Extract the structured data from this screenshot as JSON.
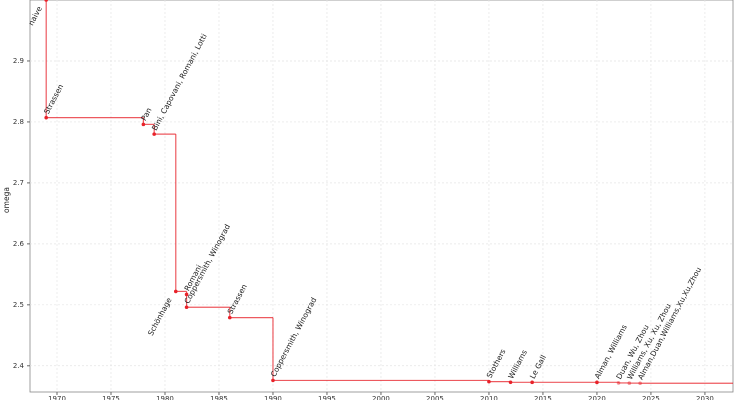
{
  "chart_data": {
    "type": "step",
    "ylabel": "omega",
    "xlim": [
      1967.5,
      2032.6
    ],
    "ylim": [
      2.357,
      3.0
    ],
    "xticks": [
      1970,
      1975,
      1980,
      1985,
      1990,
      1995,
      2000,
      2005,
      2010,
      2015,
      2020,
      2025,
      2030
    ],
    "yticks": [
      2.4,
      2.5,
      2.6,
      2.7,
      2.8,
      2.9
    ],
    "grid": true,
    "series": [
      {
        "color": "#e8222a",
        "x": [
          1969,
          1969,
          1978,
          1979,
          1981,
          1982,
          1982,
          1986,
          1990,
          2010,
          2012,
          2014,
          2020,
          2022,
          2023,
          2024
        ],
        "values": [
          3.0,
          2.807,
          2.796,
          2.78,
          2.522,
          2.517,
          2.496,
          2.479,
          2.376,
          2.374,
          2.3729,
          2.3728639,
          2.3728596,
          2.371866,
          2.371552,
          2.371339
        ],
        "labels": [
          "naive",
          "Strassen",
          "Pan",
          "Bini, Capovani, Romani, Lotti",
          "Schönhage",
          "Romani",
          "Coppersmith, Winograd",
          "Strassen",
          "Coppersmith, Winograd",
          "Stothers",
          "Williams",
          "Le Gall",
          "Alman, Williams",
          "Duan, Wu, Zhou",
          "Williams, Xu, Xu, Zhou",
          "Alman,Duan,Williams,Xu,Xu,Zhou"
        ],
        "label_colors": [
          "#222",
          "#222",
          "#222",
          "#222",
          "#222",
          "#222",
          "#222",
          "#222",
          "#222",
          "#222",
          "#222",
          "#222",
          "#222",
          "#999",
          "#999",
          "#999"
        ],
        "label_side": [
          "left",
          "right",
          "right",
          "right",
          "left",
          "right",
          "right",
          "right",
          "right",
          "right",
          "right",
          "right",
          "right",
          "right",
          "right",
          "right"
        ]
      }
    ]
  }
}
